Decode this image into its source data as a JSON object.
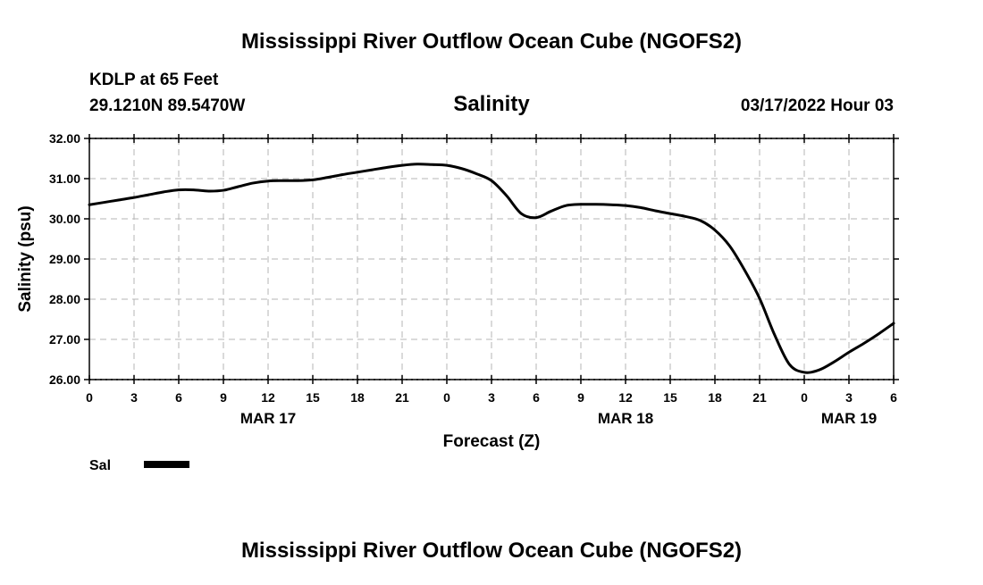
{
  "chart_data": {
    "type": "line",
    "title": "Mississippi River Outflow Ocean Cube (NGOFS2)",
    "footer_title": "Mississippi River Outflow Ocean Cube (NGOFS2)",
    "station_line1": "KDLP at 65 Feet",
    "station_line2": "29.1210N  89.5470W",
    "subtitle": "Salinity",
    "datetime": "03/17/2022 Hour 03",
    "xlabel": "Forecast (Z)",
    "ylabel": "Salinity (psu)",
    "xlim": [
      0,
      54
    ],
    "ylim": [
      26,
      32
    ],
    "grid": true,
    "x_ticks": [
      {
        "value": 0,
        "label": "0"
      },
      {
        "value": 3,
        "label": "3"
      },
      {
        "value": 6,
        "label": "6"
      },
      {
        "value": 9,
        "label": "9"
      },
      {
        "value": 12,
        "label": "12"
      },
      {
        "value": 15,
        "label": "15"
      },
      {
        "value": 18,
        "label": "18"
      },
      {
        "value": 21,
        "label": "21"
      },
      {
        "value": 24,
        "label": "0"
      },
      {
        "value": 27,
        "label": "3"
      },
      {
        "value": 30,
        "label": "6"
      },
      {
        "value": 33,
        "label": "9"
      },
      {
        "value": 36,
        "label": "12"
      },
      {
        "value": 39,
        "label": "15"
      },
      {
        "value": 42,
        "label": "18"
      },
      {
        "value": 45,
        "label": "21"
      },
      {
        "value": 48,
        "label": "0"
      },
      {
        "value": 51,
        "label": "3"
      },
      {
        "value": 54,
        "label": "6"
      }
    ],
    "y_ticks": [
      {
        "value": 26,
        "label": "26.00"
      },
      {
        "value": 27,
        "label": "27.00"
      },
      {
        "value": 28,
        "label": "28.00"
      },
      {
        "value": 29,
        "label": "29.00"
      },
      {
        "value": 30,
        "label": "30.00"
      },
      {
        "value": 31,
        "label": "31.00"
      },
      {
        "value": 32,
        "label": "32.00"
      }
    ],
    "date_labels": [
      {
        "value": 12,
        "label": "MAR 17"
      },
      {
        "value": 36,
        "label": "MAR 18"
      },
      {
        "value": 51,
        "label": "MAR 19"
      }
    ],
    "series": [
      {
        "name": "Sal",
        "color": "#000000",
        "x": [
          0,
          1,
          2,
          3,
          4,
          5,
          6,
          7,
          8,
          9,
          10,
          11,
          12,
          13,
          14,
          15,
          16,
          17,
          18,
          19,
          20,
          21,
          22,
          23,
          24,
          25,
          26,
          27,
          28,
          29,
          30,
          31,
          32,
          33,
          34,
          35,
          36,
          37,
          38,
          39,
          40,
          41,
          42,
          43,
          44,
          45,
          46,
          47,
          48,
          49,
          50,
          51,
          52,
          53,
          54
        ],
        "y": [
          30.35,
          30.41,
          30.47,
          30.53,
          30.6,
          30.67,
          30.72,
          30.72,
          30.69,
          30.71,
          30.8,
          30.89,
          30.94,
          30.95,
          30.95,
          30.97,
          31.03,
          31.1,
          31.16,
          31.22,
          31.28,
          31.33,
          31.36,
          31.35,
          31.33,
          31.25,
          31.12,
          30.95,
          30.58,
          30.13,
          30.03,
          30.19,
          30.33,
          30.36,
          30.36,
          30.35,
          30.33,
          30.28,
          30.2,
          30.13,
          30.06,
          29.96,
          29.72,
          29.32,
          28.72,
          28.02,
          27.12,
          26.38,
          26.18,
          26.24,
          26.44,
          26.68,
          26.9,
          27.14,
          27.4
        ]
      }
    ],
    "legend": [
      {
        "label": "Sal",
        "color": "#000000"
      }
    ]
  }
}
